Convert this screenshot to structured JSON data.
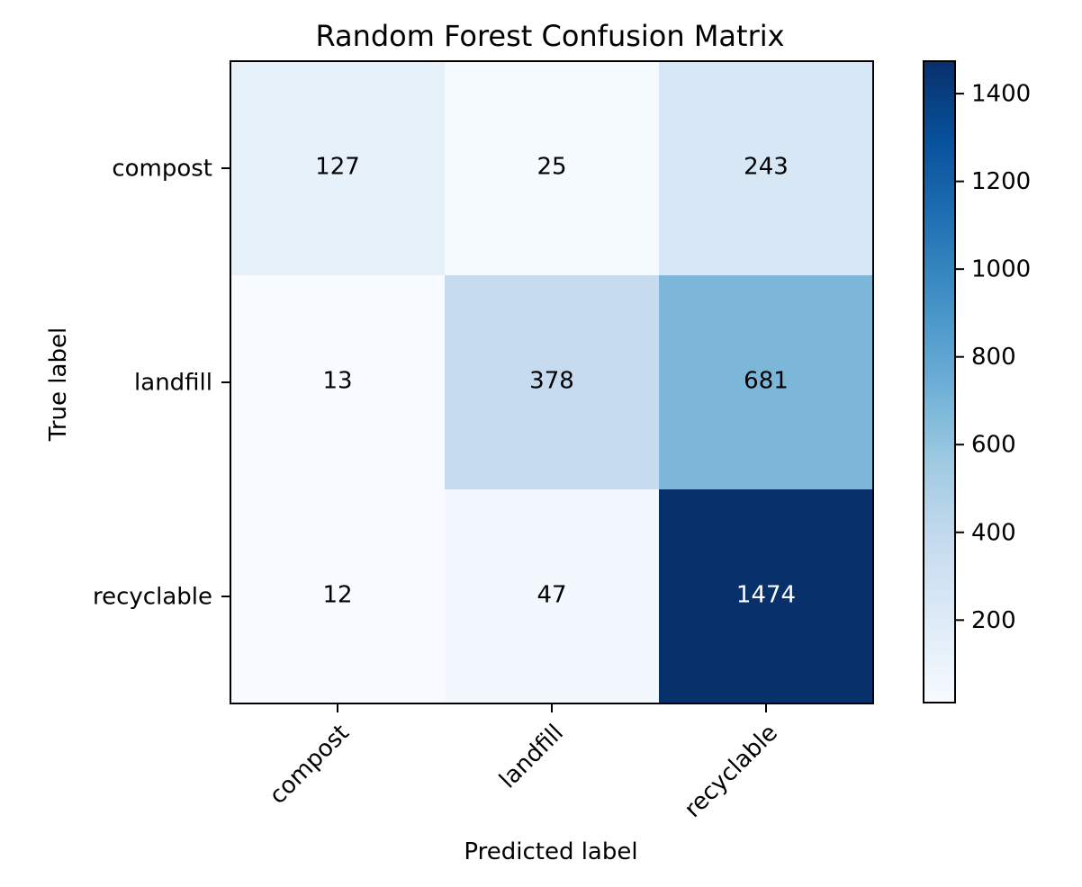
{
  "chart_data": {
    "type": "heatmap",
    "title": "Random Forest Confusion Matrix",
    "xlabel": "Predicted label",
    "ylabel": "True label",
    "x_categories": [
      "compost",
      "landfill",
      "recyclable"
    ],
    "y_categories": [
      "compost",
      "landfill",
      "recyclable"
    ],
    "values": [
      [
        127,
        25,
        243
      ],
      [
        13,
        378,
        681
      ],
      [
        12,
        47,
        1474
      ]
    ],
    "colormap": "Blues",
    "colorbar": {
      "range": [
        12,
        1474
      ],
      "ticks": [
        200,
        400,
        600,
        800,
        1000,
        1200,
        1400
      ]
    },
    "grid": false
  }
}
